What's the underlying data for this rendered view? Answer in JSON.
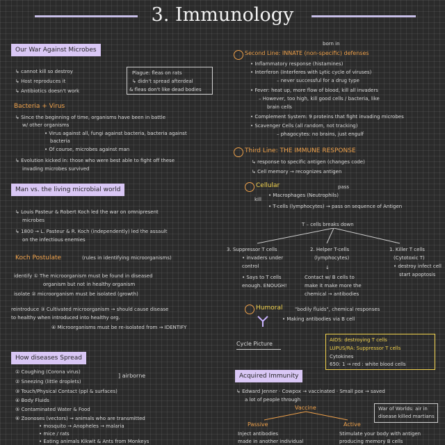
{
  "title": "3. Immunology",
  "left": {
    "war_heading": "Our War Against Microbes",
    "war_lines": [
      "↳ cannot kill so destroy",
      "↳ Host reproduces it",
      "↳ Antibiotics doesn't work"
    ],
    "plague_box": [
      "Plague: fleas on rats",
      "↳ didn't spread afterdeal",
      "& fleas don't like dead bodies"
    ],
    "bv_heading": "Bacteria + Virus",
    "bv_lines": [
      "↳ Since the beginning of time, organisms have been in battle",
      "w/ other organisms",
      "• Virus against all, fungi against bacteria, bacteria against",
      "bacteria",
      "• Of course, microbes against man",
      "↳ Evolution kicked in: those who were best able to fight off these",
      "invading microbes survived"
    ],
    "man_heading": "Man vs. the living microbial world",
    "man_lines": [
      "↳ Louis Pasteur & Robert Koch led the war on omnipresent",
      "microbes",
      "↳ 1800 → L. Pasteur & R. Koch (independently) led the assault",
      "on the infectious enemies"
    ],
    "koch_heading": "Koch Postulate",
    "koch_note": "(rules in identifying microorganisms)",
    "koch_lines": [
      "identify ① The microorganism must be found in diseased",
      "organism but not in healthy organism",
      "isolate ② microorganism must be isolated (growth)",
      "reintroduce ③ Cultivated microorganism → should cause disease",
      "to healthy when introduced into healthy org.",
      "④ Microorganisms must be re-isolated from → IDENTIFY"
    ],
    "spread_heading": "How diseases Spread",
    "spread_lines": [
      "① Coughing (Corona virus)",
      "② Sneezing (little droplets)",
      "③ Touch/Physical Contact (ppl & surfaces)",
      "④ Body Fluids",
      "⑤ Contaminated Water & Food",
      "⑥ Zoonoses (vectors) → animals who are transmitted",
      "• mosquito → Anopheles → malaria",
      "• mice / rats",
      "• Eating animals Kikwit & Ants from Monkeys"
    ],
    "airborne": "] airborne"
  },
  "right": {
    "born_in": "born in",
    "second_heading": "Second Line: INNATE (non-specific) defenses",
    "second_lines": [
      "• Inflammatory response (histamines)",
      "• Interferon (Interferes with Lytic cycle of viruses)",
      "– never successful for a drug type",
      "• Fever: heat up, more flow of blood, kill all invaders",
      "– However, too high, kill good cells / bacteria, like",
      "brain cells",
      "• Complement System: 9 proteins that fight invading microbes",
      "• Scavenger Cells (all random, not tracking)",
      "– phagocytes: no brains, just engulf"
    ],
    "third_heading": "Third Line: THE IMMUNE RESPONSE",
    "third_lines": [
      "↳ response to specific antigen (changes code)",
      "↳ Cell memory → recognizes antigen"
    ],
    "cellular_heading": "Cellular",
    "cellular_lines": [
      "• Macrophages (Neutrophils)",
      "• T-cells (lymphocytes) → pass on sequence of Antigen"
    ],
    "kill": "kill",
    "pass": "pass",
    "tcells_title": "T – cells breaks down",
    "col1": [
      "3. Suppressor T cells",
      "• invaders under",
      "control",
      "• Says to T cells",
      "enough. ENOUGH!"
    ],
    "col2": [
      "2. Helper T-cells",
      "(lymphocytes)",
      "↓",
      "Contact w/ B cells to",
      "make it make more the",
      "chemical → antibodies"
    ],
    "col3": [
      "1. Killer T cells",
      "(Cytotoxic T)",
      "• destroy infect cell",
      "start apoptosis"
    ],
    "humoral_heading": "Humoral",
    "humoral_lines": [
      "\"bodily fluids\", chemical responses",
      "• Making antibodies via B cell"
    ],
    "cycle": "Cycle Picture",
    "aids_lines": [
      "AIDS: destroying T cells",
      "LUPUS/RA: Suppressor T cells",
      "Cytokines",
      "650: 1 → red : white blood cells"
    ],
    "acquired_heading": "Acquired Immunity",
    "acquired_lines": [
      "↳ Edward Jenner · Cowpox → vaccinated · Small pox → saved",
      "a lot of people through"
    ],
    "vaccine": "Vaccine",
    "war_box": [
      "War of Worlds: air in",
      "disease killed martians"
    ],
    "passive_heading": "Passive",
    "passive_lines": [
      "Inject antibodies",
      "made in another individual"
    ],
    "active_heading": "Active",
    "active_lines": [
      "Stimulate your body with antigen",
      "producing memory B cells"
    ]
  }
}
